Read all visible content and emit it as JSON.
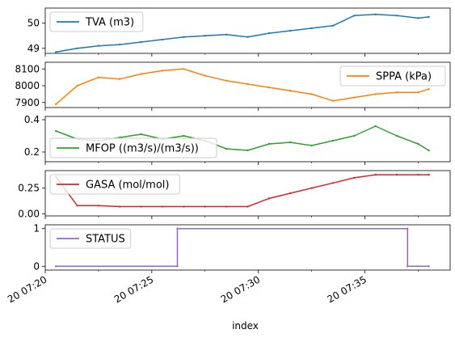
{
  "chart_data": {
    "type": "line",
    "xlabel": "index",
    "x_range": [
      "20 07:20:30",
      "20 07:38:00"
    ],
    "x_ticks": [
      {
        "t": "20 07:20",
        "minutes": 0
      },
      {
        "t": "20 07:25",
        "minutes": 5
      },
      {
        "t": "20 07:30",
        "minutes": 10
      },
      {
        "t": "20 07:35",
        "minutes": 15
      }
    ],
    "x_ticks_unlabeled_minutes": [
      2.5,
      7.5,
      12.5,
      17.5
    ],
    "shared_x": true,
    "grid": false,
    "panels": [
      {
        "name": "TVA (m3)",
        "color": "#1f77b4",
        "legend": "top-left",
        "ylim": [
          48.8,
          50.6
        ],
        "yticks": [
          {
            "v": 49,
            "label": "49"
          },
          {
            "v": 50,
            "label": "50"
          }
        ],
        "x": [
          0.5,
          1.5,
          2.5,
          3.5,
          4.5,
          5.5,
          6.5,
          7.5,
          8.5,
          9.5,
          10.5,
          11.5,
          12.5,
          13.5,
          14.5,
          15.5,
          16.5,
          17.5,
          18.0
        ],
        "values": [
          48.85,
          49.0,
          49.1,
          49.15,
          49.25,
          49.35,
          49.45,
          49.5,
          49.55,
          49.45,
          49.6,
          49.7,
          49.8,
          49.9,
          50.3,
          50.35,
          50.3,
          50.2,
          50.25
        ]
      },
      {
        "name": "SPPA (kPa)",
        "color": "#ff7f0e",
        "legend": "top-right",
        "ylim": [
          7870,
          8140
        ],
        "yticks": [
          {
            "v": 7900,
            "label": "7900"
          },
          {
            "v": 8000,
            "label": "8000"
          },
          {
            "v": 8100,
            "label": "8100"
          }
        ],
        "x": [
          0.5,
          1.5,
          2.5,
          3.5,
          4.5,
          5.5,
          6.5,
          7.5,
          8.5,
          9.5,
          10.5,
          11.5,
          12.5,
          13.5,
          14.5,
          15.5,
          16.5,
          17.5,
          18.0
        ],
        "values": [
          7890,
          8000,
          8050,
          8040,
          8070,
          8090,
          8100,
          8060,
          8030,
          8010,
          7990,
          7970,
          7950,
          7910,
          7930,
          7950,
          7960,
          7960,
          7980
        ]
      },
      {
        "name": "MFOP ((m3/s)/(m3/s))",
        "color": "#2ca02c",
        "legend": "bottom-left",
        "ylim": [
          0.14,
          0.42
        ],
        "yticks": [
          {
            "v": 0.2,
            "label": "0.2"
          },
          {
            "v": 0.4,
            "label": "0.4"
          }
        ],
        "x": [
          0.5,
          1.5,
          2.5,
          3.5,
          4.5,
          5.5,
          6.5,
          7.5,
          8.5,
          9.5,
          10.5,
          11.5,
          12.5,
          13.5,
          14.5,
          15.5,
          16.5,
          17.5,
          18.0
        ],
        "values": [
          0.33,
          0.28,
          0.27,
          0.29,
          0.31,
          0.28,
          0.3,
          0.27,
          0.22,
          0.21,
          0.25,
          0.26,
          0.24,
          0.27,
          0.3,
          0.36,
          0.3,
          0.25,
          0.21
        ]
      },
      {
        "name": "GASA (mol/mol)",
        "color": "#d62728",
        "legend": "top-left",
        "ylim": [
          -0.02,
          0.42
        ],
        "yticks": [
          {
            "v": 0.0,
            "label": "0.00"
          },
          {
            "v": 0.25,
            "label": "0.25"
          }
        ],
        "x": [
          0.5,
          1.5,
          2.5,
          3.5,
          4.5,
          5.5,
          6.5,
          7.5,
          8.5,
          9.5,
          10.5,
          11.5,
          12.5,
          13.5,
          14.5,
          15.5,
          16.5,
          17.5,
          18.0
        ],
        "values": [
          0.36,
          0.08,
          0.08,
          0.07,
          0.07,
          0.07,
          0.07,
          0.07,
          0.07,
          0.07,
          0.15,
          0.2,
          0.25,
          0.3,
          0.35,
          0.38,
          0.38,
          0.38,
          0.38
        ]
      },
      {
        "name": "STATUS",
        "color": "#9467bd",
        "legend": "top-left",
        "ylim": [
          -0.1,
          1.1
        ],
        "yticks": [
          {
            "v": 0,
            "label": "0"
          },
          {
            "v": 1,
            "label": "1"
          }
        ],
        "x": [
          0.5,
          6.2,
          6.2,
          17.0,
          17.0,
          18.0
        ],
        "values": [
          0,
          0,
          1,
          1,
          0,
          0
        ]
      }
    ]
  }
}
